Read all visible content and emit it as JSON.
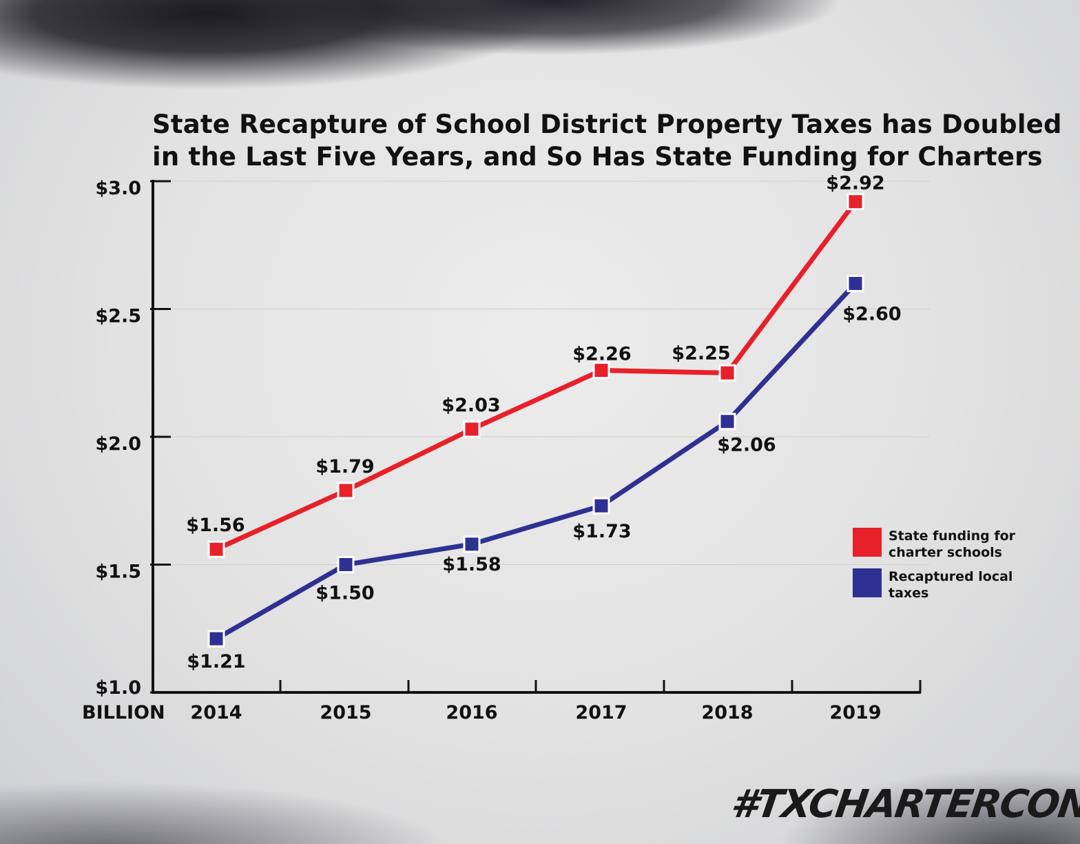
{
  "chart_data": {
    "type": "line",
    "title": "State Recapture of School District Property Taxes has Doubled in the Last Five Years, and So Has State Funding for Charters",
    "title_lines": [
      "State Recapture of School District Property Taxes has Doubled",
      "in the Last Five Years, and So Has State Funding for Charters"
    ],
    "categories": [
      "2014",
      "2015",
      "2016",
      "2017",
      "2018",
      "2019"
    ],
    "ylabel_unit": "BILLION",
    "ylim": [
      1.0,
      3.0
    ],
    "yticks": [
      1.0,
      1.5,
      2.0,
      2.5,
      3.0
    ],
    "ytick_labels": [
      "$1.0",
      "$1.5",
      "$2.0",
      "$2.5",
      "$3.0"
    ],
    "grid": true,
    "legend_position": "right",
    "series": [
      {
        "name": "State funding for charter schools",
        "color": "#e8202a",
        "values": [
          1.56,
          1.79,
          2.03,
          2.26,
          2.25,
          2.92
        ],
        "labels": [
          "$1.56",
          "$1.79",
          "$2.03",
          "$2.26",
          "$2.25",
          "$2.92"
        ]
      },
      {
        "name": "Recaptured local taxes",
        "color": "#2e3192",
        "values": [
          1.21,
          1.5,
          1.58,
          1.73,
          2.06,
          2.6
        ],
        "labels": [
          "$1.21",
          "$1.50",
          "$1.58",
          "$1.73",
          "$2.06",
          "$2.60"
        ]
      }
    ]
  },
  "legend": {
    "items": [
      {
        "label": "State funding for charter schools",
        "color": "#e8202a"
      },
      {
        "label": "Recaptured local taxes",
        "color": "#2e3192"
      }
    ]
  },
  "branding": {
    "hashtag": "#TXCHARTERCON"
  }
}
